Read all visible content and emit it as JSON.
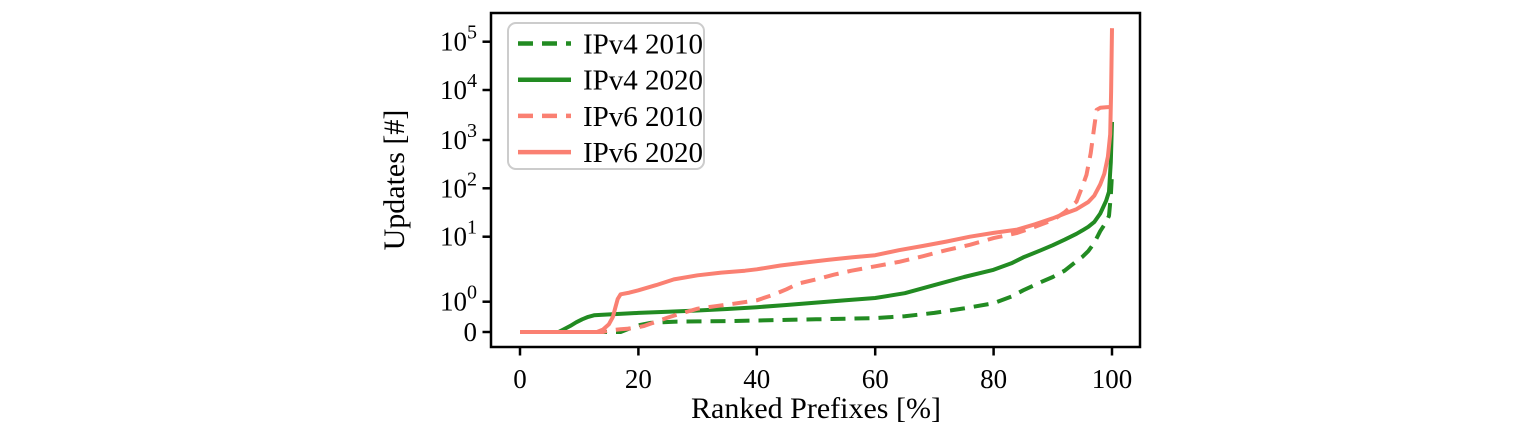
{
  "figure": {
    "background": "#ffffff",
    "frame_color": "#000000"
  },
  "chart_data": {
    "type": "line",
    "title": "",
    "xlabel": "Ranked Prefixes [%]",
    "ylabel": "Updates [#]",
    "x_ticks": [
      0,
      20,
      40,
      60,
      80,
      100
    ],
    "y_ticks": [
      "10^5",
      "10^4",
      "10^3",
      "10^2",
      "10^1",
      "10^0",
      "0"
    ],
    "y_tick_values": [
      100000,
      10000,
      1000,
      100,
      10,
      1,
      0
    ],
    "y_scale": "symlog",
    "xlim": [
      -5,
      105
    ],
    "ylim": [
      0,
      200000
    ],
    "grid": false,
    "legend_position": "upper left",
    "series": [
      {
        "name": "IPv4 2010",
        "color": "#228B22",
        "dash": true,
        "points": [
          [
            0,
            0
          ],
          [
            8,
            0
          ],
          [
            14,
            0
          ],
          [
            17,
            0
          ],
          [
            18,
            0.08
          ],
          [
            20,
            0.22
          ],
          [
            22,
            0.3
          ],
          [
            26,
            0.34
          ],
          [
            30,
            0.35
          ],
          [
            35,
            0.36
          ],
          [
            40,
            0.38
          ],
          [
            45,
            0.4
          ],
          [
            50,
            0.42
          ],
          [
            55,
            0.44
          ],
          [
            60,
            0.46
          ],
          [
            65,
            0.52
          ],
          [
            70,
            0.63
          ],
          [
            75,
            0.78
          ],
          [
            80,
            0.95
          ],
          [
            83,
            1.2
          ],
          [
            85,
            1.5
          ],
          [
            88,
            2
          ],
          [
            90,
            2.4
          ],
          [
            92,
            3
          ],
          [
            94,
            4.2
          ],
          [
            95,
            4.9
          ],
          [
            96,
            6
          ],
          [
            97,
            8
          ],
          [
            98,
            13
          ],
          [
            99,
            20
          ],
          [
            99.5,
            27
          ],
          [
            99.8,
            70
          ],
          [
            100,
            200
          ]
        ]
      },
      {
        "name": "IPv4 2020",
        "color": "#228B22",
        "dash": false,
        "points": [
          [
            0,
            0
          ],
          [
            4,
            0
          ],
          [
            6.5,
            0
          ],
          [
            7.5,
            0.1
          ],
          [
            8.5,
            0.2
          ],
          [
            9.5,
            0.32
          ],
          [
            10.5,
            0.42
          ],
          [
            11.5,
            0.5
          ],
          [
            12.5,
            0.55
          ],
          [
            14,
            0.57
          ],
          [
            16,
            0.59
          ],
          [
            18,
            0.61
          ],
          [
            20,
            0.63
          ],
          [
            25,
            0.67
          ],
          [
            30,
            0.71
          ],
          [
            35,
            0.76
          ],
          [
            40,
            0.82
          ],
          [
            45,
            0.89
          ],
          [
            50,
            0.97
          ],
          [
            55,
            1.05
          ],
          [
            60,
            1.14
          ],
          [
            65,
            1.35
          ],
          [
            70,
            1.8
          ],
          [
            75,
            2.4
          ],
          [
            80,
            3.1
          ],
          [
            83,
            3.9
          ],
          [
            85,
            4.8
          ],
          [
            88,
            6.2
          ],
          [
            90,
            7.4
          ],
          [
            92,
            9
          ],
          [
            94,
            11.5
          ],
          [
            95,
            13.5
          ],
          [
            96,
            16
          ],
          [
            97,
            20
          ],
          [
            98,
            30
          ],
          [
            99,
            55
          ],
          [
            99.5,
            85
          ],
          [
            99.8,
            350
          ],
          [
            100,
            2300
          ]
        ]
      },
      {
        "name": "IPv6 2010",
        "color": "#FA8072",
        "dash": true,
        "points": [
          [
            0,
            0
          ],
          [
            6,
            0
          ],
          [
            12,
            0
          ],
          [
            14,
            0
          ],
          [
            15,
            0.05
          ],
          [
            17,
            0.09
          ],
          [
            19,
            0.12
          ],
          [
            21,
            0.2
          ],
          [
            23,
            0.34
          ],
          [
            25,
            0.48
          ],
          [
            27,
            0.6
          ],
          [
            30,
            0.77
          ],
          [
            33,
            0.85
          ],
          [
            36,
            0.93
          ],
          [
            40,
            1.05
          ],
          [
            43,
            1.3
          ],
          [
            45,
            1.55
          ],
          [
            47,
            1.9
          ],
          [
            50,
            2.2
          ],
          [
            53,
            2.6
          ],
          [
            56,
            3
          ],
          [
            60,
            3.5
          ],
          [
            64,
            4.1
          ],
          [
            68,
            5
          ],
          [
            72,
            6.2
          ],
          [
            76,
            7.5
          ],
          [
            80,
            9.5
          ],
          [
            84,
            12
          ],
          [
            87,
            16
          ],
          [
            90,
            22
          ],
          [
            92,
            32
          ],
          [
            94,
            53
          ],
          [
            95,
            110
          ],
          [
            95.7,
            190
          ],
          [
            96.4,
            530
          ],
          [
            97,
            1800
          ],
          [
            97.4,
            4000
          ],
          [
            98,
            4400
          ],
          [
            99,
            4500
          ],
          [
            100,
            4600
          ]
        ]
      },
      {
        "name": "IPv6 2020",
        "color": "#FA8072",
        "dash": false,
        "points": [
          [
            0,
            0
          ],
          [
            6,
            0
          ],
          [
            13,
            0
          ],
          [
            14,
            0.08
          ],
          [
            15,
            0.25
          ],
          [
            15.7,
            0.5
          ],
          [
            16.1,
            0.8
          ],
          [
            16.5,
            1.1
          ],
          [
            17,
            1.3
          ],
          [
            18.5,
            1.38
          ],
          [
            20,
            1.5
          ],
          [
            23,
            1.8
          ],
          [
            26,
            2.2
          ],
          [
            30,
            2.55
          ],
          [
            34,
            2.8
          ],
          [
            38,
            3
          ],
          [
            40,
            3.15
          ],
          [
            44,
            3.6
          ],
          [
            48,
            4
          ],
          [
            52,
            4.4
          ],
          [
            56,
            4.8
          ],
          [
            60,
            5.2
          ],
          [
            64,
            6.2
          ],
          [
            68,
            7.2
          ],
          [
            72,
            8.4
          ],
          [
            76,
            10
          ],
          [
            80,
            12
          ],
          [
            84,
            14
          ],
          [
            87,
            18
          ],
          [
            90,
            24
          ],
          [
            92,
            30
          ],
          [
            94,
            37
          ],
          [
            96,
            52
          ],
          [
            97,
            70
          ],
          [
            98,
            120
          ],
          [
            98.7,
            200
          ],
          [
            99.3,
            450
          ],
          [
            99.7,
            1300
          ],
          [
            99.85,
            9000
          ],
          [
            99.95,
            70000
          ],
          [
            100,
            190000
          ]
        ]
      }
    ]
  }
}
